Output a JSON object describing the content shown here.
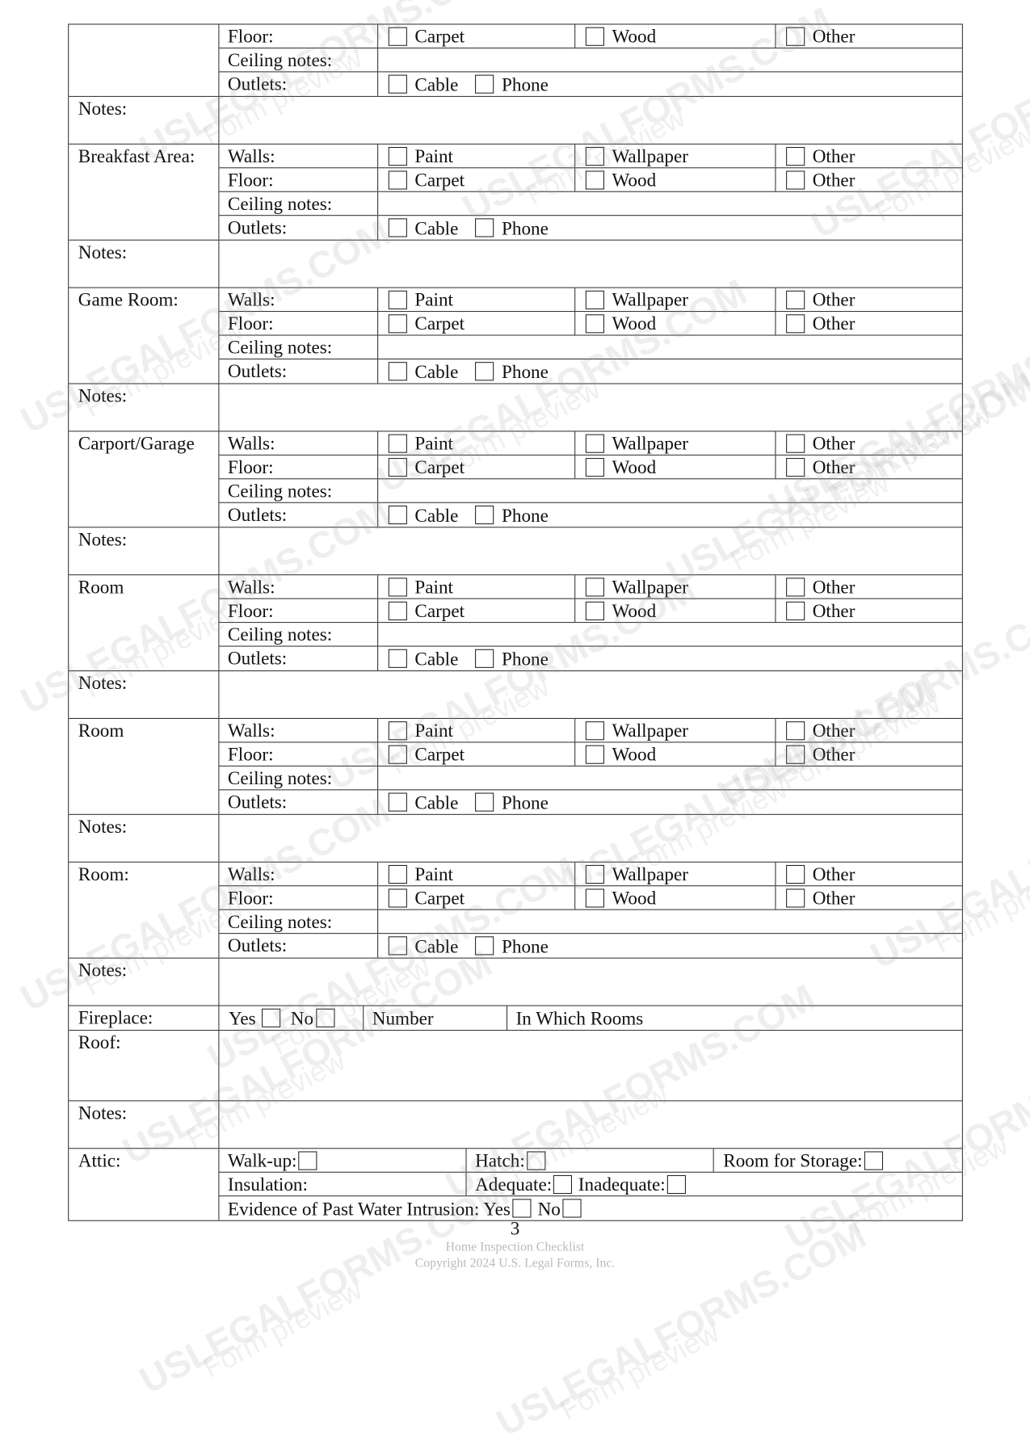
{
  "sections": [
    {
      "label": "",
      "rows": [
        {
          "label": "Floor:",
          "options": [
            "Carpet",
            "Wood",
            "Other"
          ]
        },
        {
          "label": "Ceiling notes:"
        },
        {
          "label": "Outlets:",
          "inline": [
            "Cable",
            "Phone"
          ]
        }
      ],
      "notes": "Notes:"
    },
    {
      "label": "Breakfast Area:",
      "rows": [
        {
          "label": "Walls:",
          "options": [
            "Paint",
            "Wallpaper",
            "Other"
          ]
        },
        {
          "label": "Floor:",
          "options": [
            "Carpet",
            "Wood",
            "Other"
          ]
        },
        {
          "label": "Ceiling notes:"
        },
        {
          "label": "Outlets:",
          "inline": [
            "Cable",
            "Phone"
          ]
        }
      ],
      "notes": "Notes:"
    },
    {
      "label": "Game Room:",
      "rows": [
        {
          "label": "Walls:",
          "options": [
            "Paint",
            "Wallpaper",
            "Other"
          ]
        },
        {
          "label": "Floor:",
          "options": [
            "Carpet",
            "Wood",
            "Other"
          ]
        },
        {
          "label": "Ceiling notes:"
        },
        {
          "label": "Outlets:",
          "inline": [
            "Cable",
            "Phone"
          ]
        }
      ],
      "notes": "Notes:"
    },
    {
      "label": "Carport/Garage",
      "rows": [
        {
          "label": "Walls:",
          "options": [
            "Paint",
            "Wallpaper",
            "Other"
          ]
        },
        {
          "label": "Floor:",
          "options": [
            "Carpet",
            "Wood",
            "Other"
          ]
        },
        {
          "label": "Ceiling notes:"
        },
        {
          "label": "Outlets:",
          "inline": [
            "Cable",
            "Phone"
          ]
        }
      ],
      "notes": "Notes:"
    },
    {
      "label": "Room",
      "rows": [
        {
          "label": "Walls:",
          "options": [
            "Paint",
            "Wallpaper",
            "Other"
          ]
        },
        {
          "label": "Floor:",
          "options": [
            "Carpet",
            "Wood",
            "Other"
          ]
        },
        {
          "label": "Ceiling notes:"
        },
        {
          "label": "Outlets:",
          "inline": [
            "Cable",
            "Phone"
          ]
        }
      ],
      "notes": "Notes:"
    },
    {
      "label": "Room",
      "rows": [
        {
          "label": "Walls:",
          "options": [
            "Paint",
            "Wallpaper",
            "Other"
          ]
        },
        {
          "label": "Floor:",
          "options": [
            "Carpet",
            "Wood",
            "Other"
          ]
        },
        {
          "label": "Ceiling notes:"
        },
        {
          "label": "Outlets:",
          "inline": [
            "Cable",
            "Phone"
          ]
        }
      ],
      "notes": "Notes:"
    },
    {
      "label": "Room:",
      "rows": [
        {
          "label": "Walls:",
          "options": [
            "Paint",
            "Wallpaper",
            "Other"
          ]
        },
        {
          "label": "Floor:",
          "options": [
            "Carpet",
            "Wood",
            "Other"
          ]
        },
        {
          "label": "Ceiling notes:"
        },
        {
          "label": "Outlets:",
          "inline": [
            "Cable",
            "Phone"
          ]
        }
      ],
      "notes": "Notes:"
    }
  ],
  "fireplace": {
    "label": "Fireplace:",
    "yes": "Yes",
    "no": "No",
    "number": "Number",
    "rooms": "In Which Rooms"
  },
  "roof": {
    "label": "Roof:",
    "notes": "Notes:"
  },
  "attic": {
    "label": "Attic:",
    "walkup": "Walk-up:",
    "hatch": "Hatch:",
    "storage": "Room for Storage:",
    "insulation": "Insulation:",
    "adequate": "Adequate:",
    "inadequate": "Inadequate:",
    "water": "Evidence of Past Water Intrusion: Yes",
    "water_no": "No"
  },
  "footer": {
    "page_number": "3",
    "title": "Home Inspection Checklist",
    "copyright": "Copyright 2024 U.S. Legal Forms, Inc."
  },
  "watermark": {
    "brand": "USLEGALFORMS.COM",
    "sub": "Form preview"
  }
}
